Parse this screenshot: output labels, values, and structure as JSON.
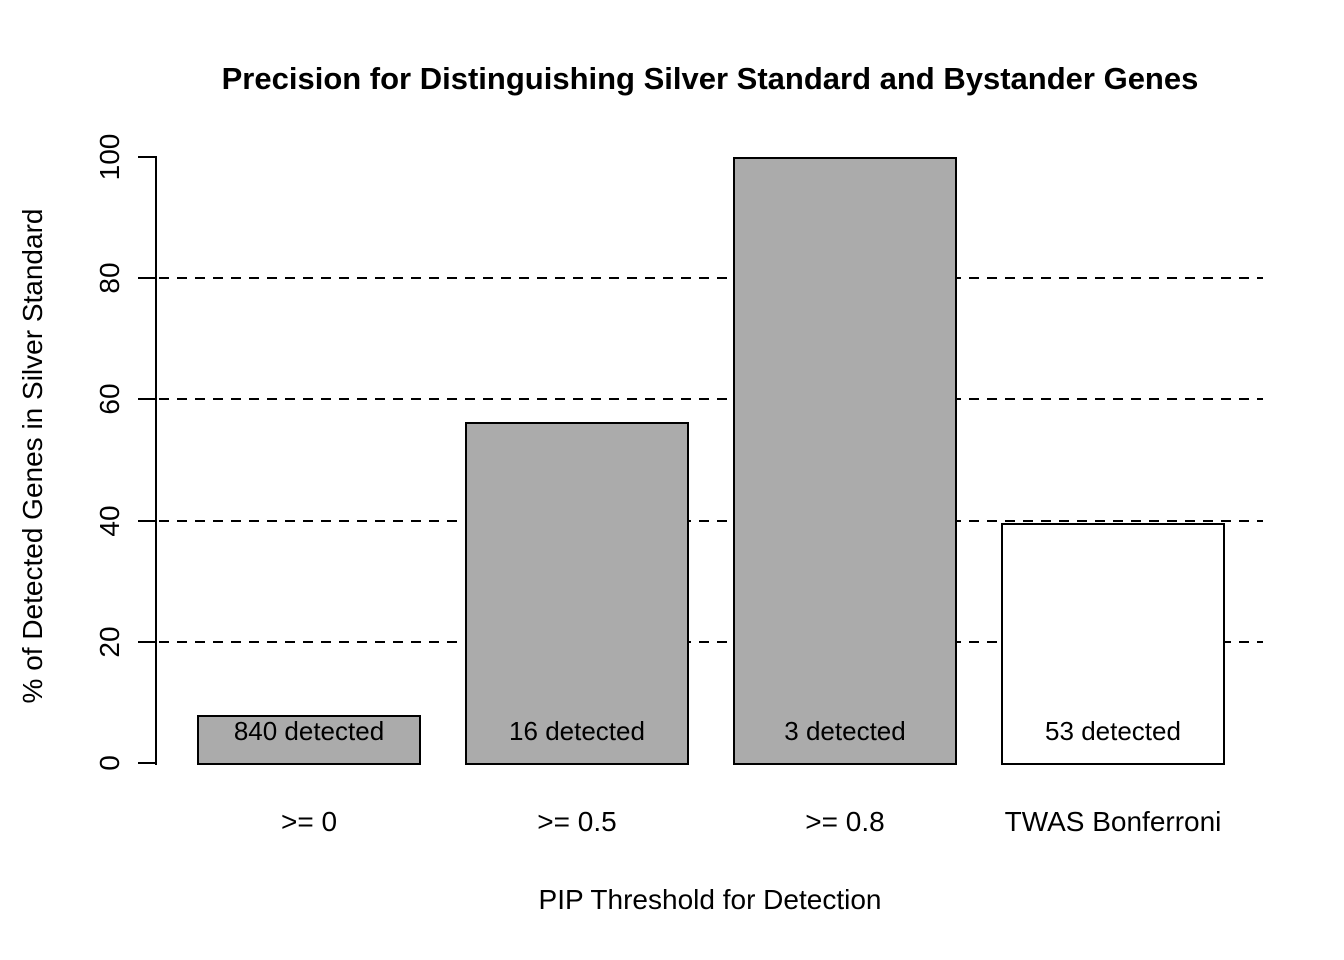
{
  "chart_data": {
    "type": "bar",
    "title": "Precision for Distinguishing Silver Standard and Bystander Genes",
    "xlabel": "PIP Threshold for Detection",
    "ylabel": "% of Detected Genes in Silver Standard",
    "categories": [
      ">= 0",
      ">= 0.5",
      ">= 0.8",
      "TWAS Bonferroni"
    ],
    "values": [
      8,
      56.25,
      100,
      39.6
    ],
    "bar_labels": [
      "840 detected",
      "16 detected",
      "3 detected",
      "53 detected"
    ],
    "bar_colors": [
      "#ABABAB",
      "#ABABAB",
      "#ABABAB",
      "#FFFFFF"
    ],
    "bar_border_color": "#000000",
    "ylim": [
      0,
      100
    ],
    "yticks": [
      0,
      20,
      40,
      60,
      80,
      100
    ],
    "gridlines_y": [
      20,
      40,
      60,
      80
    ],
    "grid_style": "dashed",
    "legend": "none",
    "background_color": "#FFFFFF",
    "text_color": "#000000"
  }
}
